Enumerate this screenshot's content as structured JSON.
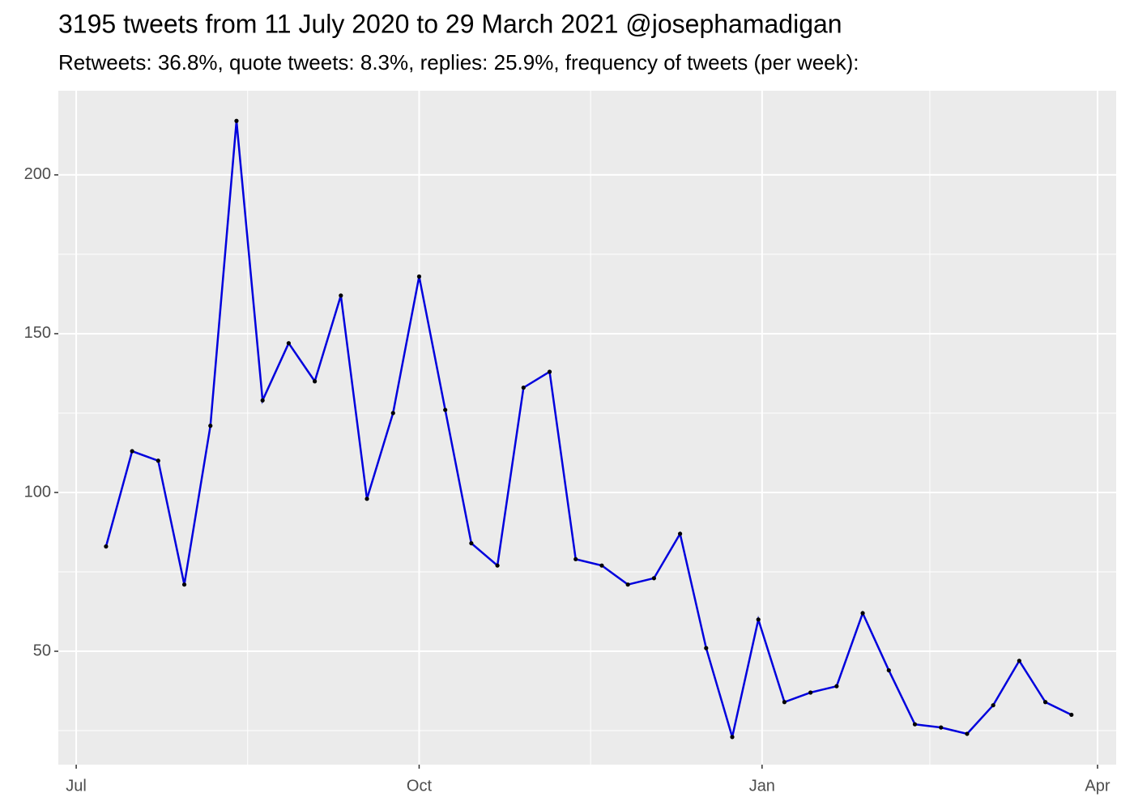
{
  "chart_data": {
    "type": "line",
    "title": "3195 tweets from 11 July 2020 to 29 March 2021 @josephamadigan",
    "subtitle": "Retweets: 36.8%, quote tweets: 8.3%, replies: 25.9%, frequency of tweets (per week):",
    "x": [
      8,
      15,
      22,
      29,
      36,
      43,
      50,
      57,
      64,
      71,
      78,
      85,
      92,
      99,
      106,
      113,
      120,
      127,
      134,
      141,
      148,
      155,
      162,
      169,
      176,
      183,
      190,
      197,
      204,
      211,
      218,
      225,
      232,
      239,
      246,
      253,
      260,
      267
    ],
    "series": [
      {
        "color": "#0000dd",
        "point_color": "#000000",
        "values": [
          83,
          113,
          110,
          71,
          121,
          217,
          129,
          147,
          135,
          162,
          98,
          125,
          168,
          126,
          84,
          77,
          133,
          138,
          79,
          77,
          71,
          73,
          87,
          51,
          23,
          60,
          34,
          37,
          39,
          62,
          44,
          27,
          26,
          24,
          33,
          47,
          34,
          30
        ]
      }
    ],
    "xlim": [
      -4.8,
      279
    ],
    "xticks": [
      {
        "value": 0,
        "label": "Jul"
      },
      {
        "value": 92,
        "label": "Oct"
      },
      {
        "value": 184,
        "label": "Jan"
      },
      {
        "value": 274,
        "label": "Apr"
      }
    ],
    "ylim": [
      14.3,
      226.5
    ],
    "yticks": [
      50,
      100,
      150,
      200
    ],
    "grid": true
  }
}
